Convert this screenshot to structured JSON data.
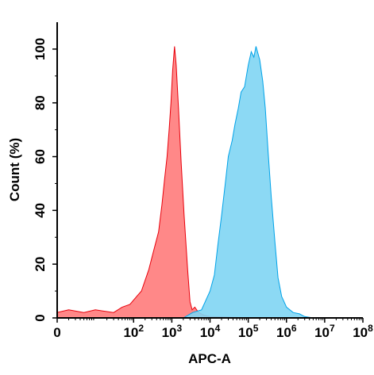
{
  "chart_data": {
    "type": "area",
    "title": "",
    "xlabel": "APC-A",
    "ylabel": "Count  (%)",
    "x_scale": "log",
    "xlim": [
      1,
      100000000
    ],
    "ylim": [
      0,
      110
    ],
    "x_ticks": [
      {
        "value": 1,
        "base": "0",
        "exp": ""
      },
      {
        "value": 100,
        "base": "10",
        "exp": "2"
      },
      {
        "value": 1000,
        "base": "10",
        "exp": "3"
      },
      {
        "value": 10000,
        "base": "10",
        "exp": "4"
      },
      {
        "value": 100000,
        "base": "10",
        "exp": "5"
      },
      {
        "value": 1000000,
        "base": "10",
        "exp": "6"
      },
      {
        "value": 10000000,
        "base": "10",
        "exp": "7"
      },
      {
        "value": 100000000,
        "base": "10",
        "exp": "8"
      }
    ],
    "y_ticks": [
      {
        "value": 0,
        "label": "0"
      },
      {
        "value": 20,
        "label": "20"
      },
      {
        "value": 40,
        "label": "40"
      },
      {
        "value": 60,
        "label": "60"
      },
      {
        "value": 80,
        "label": "80"
      },
      {
        "value": 100,
        "label": "100"
      }
    ],
    "grid": false,
    "series": [
      {
        "color": "#ff7b7b",
        "stroke": "#e8000b",
        "points": [
          [
            1,
            2
          ],
          [
            2,
            3
          ],
          [
            5,
            2
          ],
          [
            10,
            3
          ],
          [
            30,
            2
          ],
          [
            50,
            4
          ],
          [
            80,
            5
          ],
          [
            120,
            8
          ],
          [
            160,
            10
          ],
          [
            250,
            18
          ],
          [
            350,
            26
          ],
          [
            450,
            32
          ],
          [
            550,
            42
          ],
          [
            650,
            52
          ],
          [
            750,
            60
          ],
          [
            850,
            70
          ],
          [
            950,
            80
          ],
          [
            1050,
            92
          ],
          [
            1180,
            101
          ],
          [
            1300,
            94
          ],
          [
            1500,
            78
          ],
          [
            1750,
            58
          ],
          [
            2100,
            38
          ],
          [
            2600,
            18
          ],
          [
            3000,
            6
          ],
          [
            3400,
            3
          ],
          [
            4000,
            4
          ],
          [
            5000,
            2
          ],
          [
            7000,
            1
          ],
          [
            10000,
            0.5
          ],
          [
            30000,
            0.3
          ],
          [
            100000,
            0
          ]
        ]
      },
      {
        "color": "#7fd5f3",
        "stroke": "#00a2e8",
        "points": [
          [
            2000,
            0
          ],
          [
            3500,
            2
          ],
          [
            6000,
            3
          ],
          [
            10000,
            10
          ],
          [
            13000,
            16
          ],
          [
            16000,
            27
          ],
          [
            20000,
            38
          ],
          [
            25000,
            50
          ],
          [
            30000,
            60
          ],
          [
            38000,
            66
          ],
          [
            45000,
            72
          ],
          [
            55000,
            78
          ],
          [
            65000,
            84
          ],
          [
            80000,
            86
          ],
          [
            100000,
            94
          ],
          [
            120000,
            99
          ],
          [
            140000,
            97
          ],
          [
            160000,
            101
          ],
          [
            200000,
            96
          ],
          [
            240000,
            88
          ],
          [
            280000,
            78
          ],
          [
            330000,
            62
          ],
          [
            400000,
            45
          ],
          [
            500000,
            28
          ],
          [
            600000,
            15
          ],
          [
            750000,
            8
          ],
          [
            1000000,
            4
          ],
          [
            1500000,
            2
          ],
          [
            2200000,
            1.5
          ],
          [
            3000000,
            0.5
          ],
          [
            5000000,
            0
          ]
        ]
      }
    ]
  }
}
